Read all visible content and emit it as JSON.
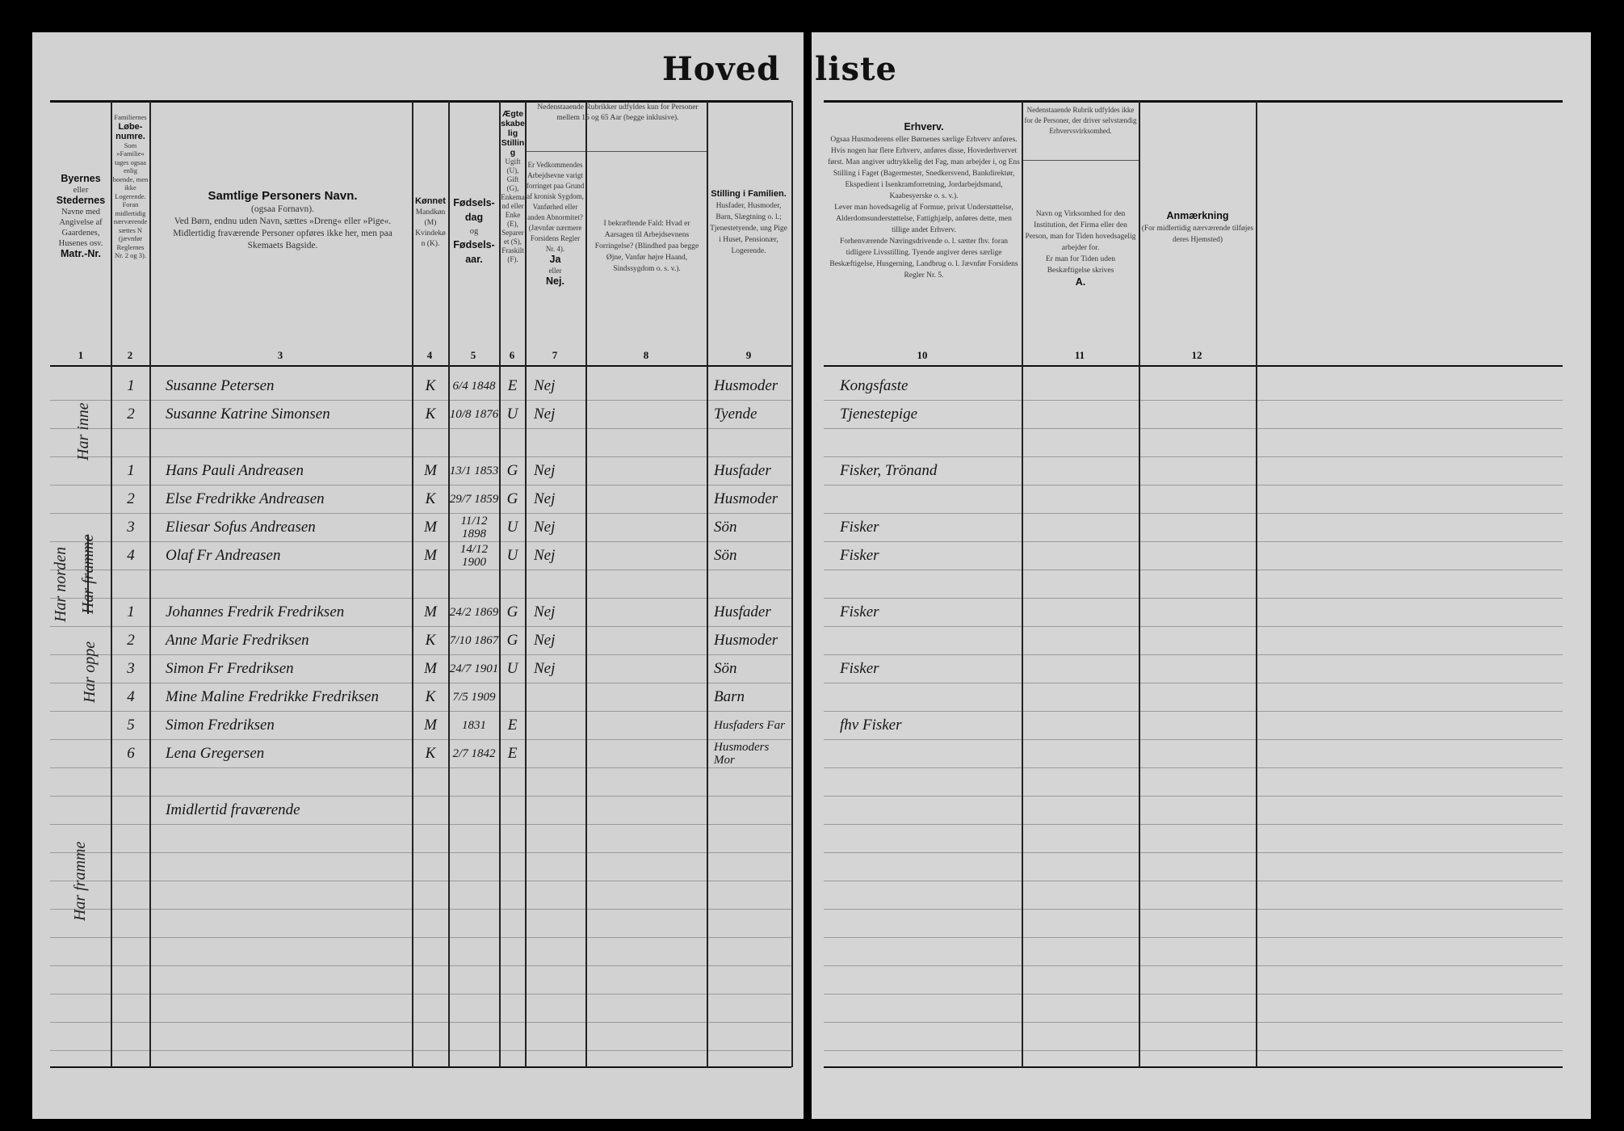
{
  "title": "Hoved liste",
  "headers": {
    "c1": [
      "Byernes",
      "eller",
      "Stedernes",
      "Navne med Angivelse af Gaardenes, Husenes osv.",
      "Matr.-Nr."
    ],
    "c2": [
      "Familiernes",
      "Løbe-numre.",
      "Som »Familie« tages ogsaa enlig boende, men ikke Logerende. Foran midlertidig nærværende sættes N (jævnfør Reglernes Nr. 2 og 3)."
    ],
    "c3": [
      "Samtlige Personers Navn.",
      "(ogsaa Fornavn).",
      "Ved Børn, endnu uden Navn, sættes »Dreng« eller »Pige«.",
      "Midlertidig fraværende Personer opføres ikke her, men paa Skemaets Bagside."
    ],
    "c4": [
      "Kønnet",
      "Mandkøn (M) Kvindekøn (K)."
    ],
    "c5": [
      "Fødsels-dag",
      "og",
      "Fødsels-aar."
    ],
    "c6": [
      "Ægteskabelig Stilling",
      "Ugift (U), Gift (G), Enkemand eller Enke (E), Separeret (S), Fraskilt (F)."
    ],
    "c78_top": "Nedenstaaende Rubrikker udfyldes kun for Personer mellem 16 og 65 Aar (begge inklusive).",
    "c7": [
      "Er Vedkommendes Arbejdsevne varigt forringet paa Grund af kronisk Sygdom, Vanførhed eller anden Abnormitet? (Jævnfør nærmere Forsidens Regler Nr. 4).",
      "Ja",
      "eller",
      "Nej."
    ],
    "c8": "I bekræftende Fald: Hvad er Aarsagen til Arbejdsevnens Forringelse? (Blindhed paa begge Øjne, Vanfør højre Haand, Sindssygdom o. s. v.).",
    "c9": [
      "Stilling i Familien.",
      "Husfader, Husmoder, Barn, Slægtning o. l.; Tjenestetyende, ung Pige i Huset, Pensionær, Logerende."
    ],
    "c10": [
      "Erhverv.",
      "Ogsaa Husmoderens eller Børnenes særlige Erhverv anføres. Hvis nogen har flere Erhverv, anføres disse, Hovederhvervet først. Man angiver udtrykkelig det Fag, man arbejder i, og Ens Stilling i Faget (Bagermester, Snedkersvend, Bankdirektør, Ekspedient i Isenkramforretning, Jordarbejdsmand, Kaabesyerske o. s. v.).",
      "Lever man hovedsagelig af Formue, privat Understøttelse, Alderdomsunderstøttelse, Fattighjælp, anføres dette, men tillige andet Erhverv.",
      "Forhenværende Næringsdrivende o. l. sætter fhv. foran tidligere Livsstilling. Tyende angiver deres særlige Beskæftigelse, Husgerning, Landbrug o. l. Jævnfør Forsidens Regler Nr. 5."
    ],
    "c11_top": "Nedenstaaende Rubrik udfyldes ikke for de Personer, der driver selvstændig Erhvervsvirksomhed.",
    "c11": [
      "Navn og Virksomhed for den Institution, det Firma eller den Person, man for Tiden hovedsagelig arbejder for.",
      "Er man for Tiden uden Beskæftigelse skrives",
      "A."
    ],
    "c12": [
      "Anmærkning",
      "(For midlertidig nærværende tilføjes deres Hjemsted)"
    ],
    "numbers": [
      "1",
      "2",
      "3",
      "4",
      "5",
      "6",
      "7",
      "8",
      "9",
      "10",
      "11",
      "12"
    ]
  },
  "margin_notes": [
    "Har inne",
    "Har norden",
    "Har framme",
    "Har oppe",
    "Har framme"
  ],
  "rows": [
    {
      "nr": "1",
      "name": "Susanne Petersen",
      "sex": "K",
      "born": "6/4 1848",
      "civil": "E",
      "disabled": "Nej",
      "role": "Husmoder",
      "occupation": "Kongsfaste"
    },
    {
      "nr": "2",
      "name": "Susanne Katrine Simonsen",
      "sex": "K",
      "born": "10/8 1876",
      "civil": "U",
      "disabled": "Nej",
      "role": "Tyende",
      "occupation": "Tjenestepige"
    },
    {},
    {
      "nr": "1",
      "name": "Hans Pauli Andreasen",
      "sex": "M",
      "born": "13/1 1853",
      "civil": "G",
      "disabled": "Nej",
      "role": "Husfader",
      "occupation": "Fisker, Trönand"
    },
    {
      "nr": "2",
      "name": "Else Fredrikke Andreasen",
      "sex": "K",
      "born": "29/7 1859",
      "civil": "G",
      "disabled": "Nej",
      "role": "Husmoder",
      "occupation": ""
    },
    {
      "nr": "3",
      "name": "Eliesar Sofus Andreasen",
      "sex": "M",
      "born": "11/12 1898",
      "civil": "U",
      "disabled": "Nej",
      "role": "Sön",
      "occupation": "Fisker"
    },
    {
      "nr": "4",
      "name": "Olaf Fr Andreasen",
      "sex": "M",
      "born": "14/12 1900",
      "civil": "U",
      "disabled": "Nej",
      "role": "Sön",
      "occupation": "Fisker"
    },
    {},
    {
      "nr": "1",
      "name": "Johannes Fredrik Fredriksen",
      "sex": "M",
      "born": "24/2 1869",
      "civil": "G",
      "disabled": "Nej",
      "role": "Husfader",
      "occupation": "Fisker"
    },
    {
      "nr": "2",
      "name": "Anne Marie Fredriksen",
      "sex": "K",
      "born": "7/10 1867",
      "civil": "G",
      "disabled": "Nej",
      "role": "Husmoder",
      "occupation": ""
    },
    {
      "nr": "3",
      "name": "Simon Fr Fredriksen",
      "sex": "M",
      "born": "24/7 1901",
      "civil": "U",
      "disabled": "Nej",
      "role": "Sön",
      "occupation": "Fisker"
    },
    {
      "nr": "4",
      "name": "Mine Maline Fredrikke Fredriksen",
      "sex": "K",
      "born": "7/5 1909",
      "civil": "",
      "disabled": "",
      "role": "Barn",
      "occupation": ""
    },
    {
      "nr": "5",
      "name": "Simon Fredriksen",
      "sex": "M",
      "born": "1831",
      "civil": "E",
      "disabled": "",
      "role": "Husfaders Far",
      "occupation": "fhv Fisker"
    },
    {
      "nr": "6",
      "name": "Lena Gregersen",
      "sex": "K",
      "born": "2/7 1842",
      "civil": "E",
      "disabled": "",
      "role": "Husmoders Mor",
      "occupation": ""
    },
    {},
    {
      "name": "Imidlertid fraværende"
    }
  ]
}
